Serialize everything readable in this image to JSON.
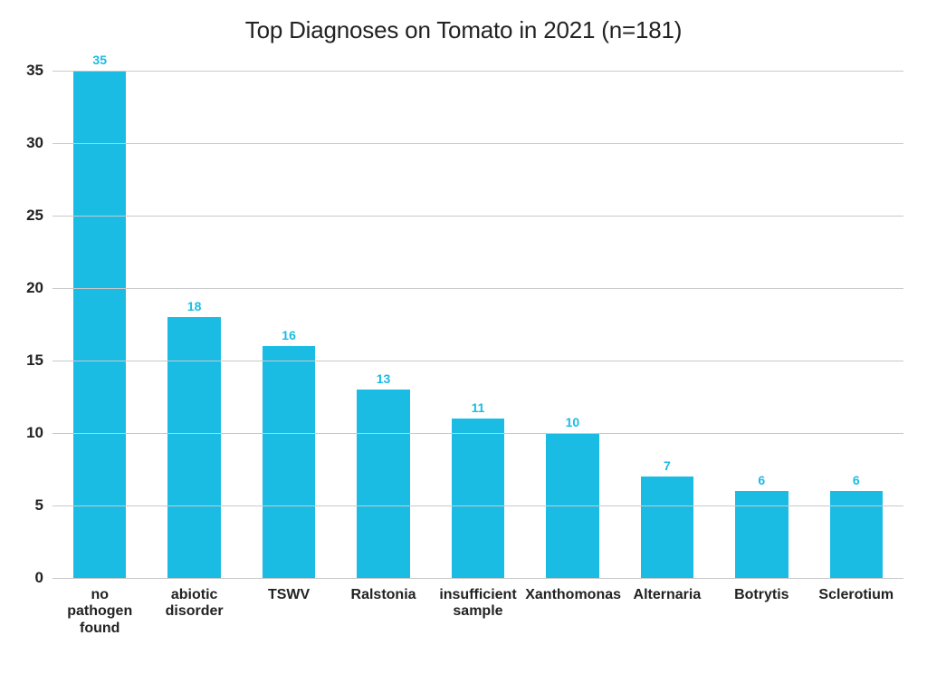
{
  "chart": {
    "type": "bar",
    "title": "Top Diagnoses on Tomato in 2021 (n=181)",
    "title_fontsize": 26,
    "title_color": "#222222",
    "background_color": "#ffffff",
    "grid_color": "#c9c9c9",
    "y": {
      "min": 0,
      "max": 35,
      "step": 5,
      "ticks": [
        0,
        5,
        10,
        15,
        20,
        25,
        30,
        35
      ],
      "label_fontsize": 17,
      "label_color": "#222222"
    },
    "bar_color": "#1abce4",
    "value_label_color": "#1abce4",
    "value_label_fontsize": 14,
    "x_label_fontsize": 16,
    "x_label_color": "#222222",
    "bar_width_ratio": 0.56,
    "categories": [
      "no pathogen found",
      "abiotic disorder",
      "TSWV",
      "Ralstonia",
      "insufficient sample",
      "Xanthomonas",
      "Alternaria",
      "Botrytis",
      "Sclerotium"
    ],
    "values": [
      35,
      18,
      16,
      13,
      11,
      10,
      7,
      6,
      6
    ]
  }
}
